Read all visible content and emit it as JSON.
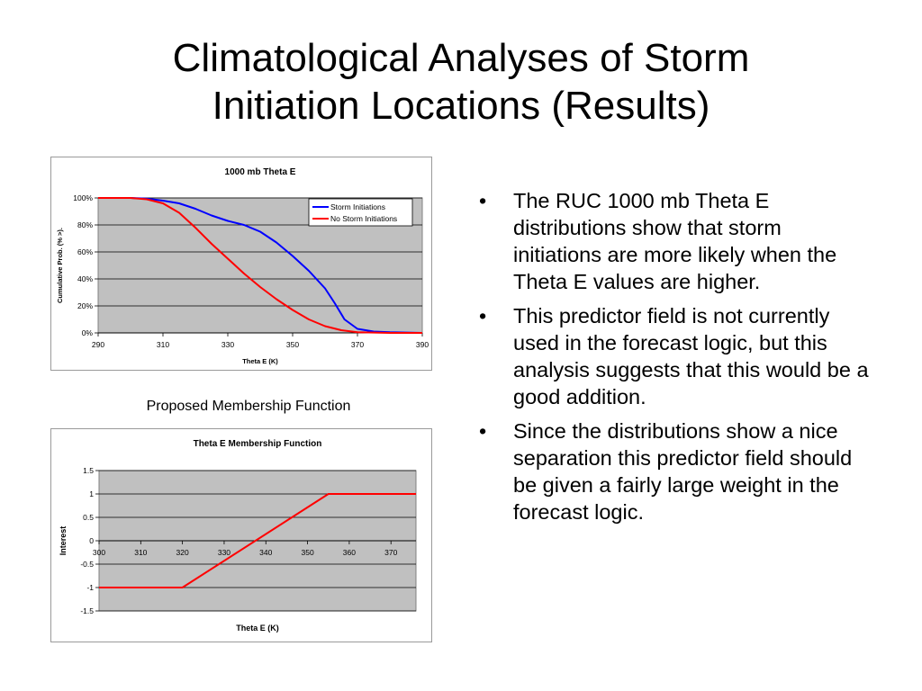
{
  "slide": {
    "title_line1": "Climatological Analyses of Storm",
    "title_line2": "Initiation Locations (Results)",
    "caption": "Proposed Membership Function",
    "bullet_glyph": "•",
    "bullets": [
      "The RUC 1000 mb Theta E distributions show that storm initiations are more likely when the Theta E values are higher.",
      "This predictor field is not currently used in the forecast logic, but this analysis suggests that this would be a good addition.",
      "Since the distributions show a nice separation this predictor field should be given a fairly large weight in the forecast logic."
    ]
  },
  "chart_data": [
    {
      "type": "line",
      "title": "1000 mb Theta E",
      "xlabel": "Theta E (K)",
      "ylabel": "Cumulative Prob. (% >).",
      "xlim": [
        290,
        390
      ],
      "ylim": [
        0,
        100
      ],
      "x_ticks": [
        290,
        310,
        330,
        350,
        370,
        390
      ],
      "y_ticks": [
        0,
        20,
        40,
        60,
        80,
        100
      ],
      "y_tick_labels": [
        "0%",
        "20%",
        "40%",
        "60%",
        "80%",
        "100%"
      ],
      "grid": true,
      "legend_position": "top-right",
      "series": [
        {
          "name": "Storm Initiations",
          "color": "#0000ff",
          "x": [
            290,
            300,
            305,
            310,
            315,
            320,
            325,
            330,
            335,
            340,
            345,
            350,
            355,
            360,
            363,
            366,
            370,
            375,
            380,
            390
          ],
          "y": [
            100,
            100,
            99.5,
            98,
            96,
            92,
            87,
            83,
            80,
            75,
            67,
            57,
            46,
            33,
            22,
            10,
            3,
            1,
            0.5,
            0
          ]
        },
        {
          "name": "No Storm Initiations",
          "color": "#ff0000",
          "x": [
            290,
            300,
            305,
            310,
            315,
            320,
            325,
            330,
            335,
            340,
            345,
            350,
            355,
            360,
            365,
            370,
            380,
            390
          ],
          "y": [
            100,
            100,
            99,
            96,
            89,
            78,
            66,
            55,
            44,
            34,
            25,
            17,
            10,
            5,
            2,
            0.5,
            0,
            0
          ]
        }
      ]
    },
    {
      "type": "line",
      "title": "Theta E Membership Function",
      "xlabel": "Theta E (K)",
      "ylabel": "Interest",
      "xlim": [
        300,
        376
      ],
      "ylim": [
        -1.5,
        1.5
      ],
      "x_ticks": [
        300,
        310,
        320,
        330,
        340,
        350,
        360,
        370
      ],
      "y_ticks": [
        -1.5,
        -1,
        -0.5,
        0,
        0.5,
        1,
        1.5
      ],
      "y_tick_labels": [
        "-1.5",
        "-1",
        "-0.5",
        "0",
        "0.5",
        "1",
        "1.5"
      ],
      "grid": true,
      "series": [
        {
          "color": "#ff0000",
          "x": [
            300,
            320,
            355,
            376
          ],
          "y": [
            -1,
            -1,
            1,
            1
          ]
        }
      ]
    }
  ]
}
